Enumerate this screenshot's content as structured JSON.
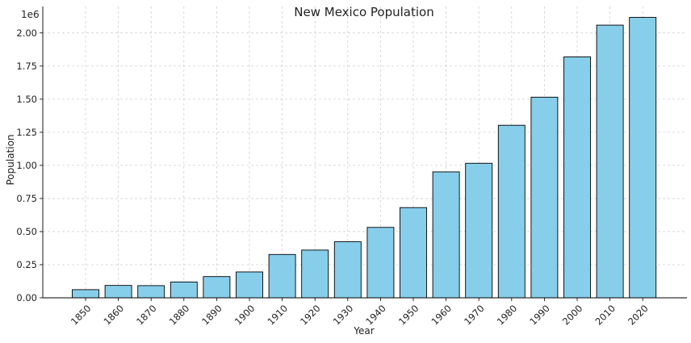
{
  "chart_data": {
    "type": "bar",
    "title": "New Mexico Population",
    "xlabel": "Year",
    "ylabel": "Population",
    "y_offset_label": "1e6",
    "categories": [
      "1850",
      "1860",
      "1870",
      "1880",
      "1890",
      "1900",
      "1910",
      "1920",
      "1930",
      "1940",
      "1950",
      "1960",
      "1970",
      "1980",
      "1990",
      "2000",
      "2010",
      "2020"
    ],
    "values": [
      61547,
      93516,
      91874,
      119565,
      160282,
      195310,
      327301,
      360350,
      423317,
      531818,
      681187,
      951023,
      1016000,
      1302894,
      1515069,
      1819046,
      2059179,
      2117522
    ],
    "ylim": [
      0,
      2200000
    ],
    "y_ticks": [
      0,
      250000,
      500000,
      750000,
      1000000,
      1250000,
      1500000,
      1750000,
      2000000
    ],
    "y_tick_labels": [
      "0.00",
      "0.25",
      "0.50",
      "0.75",
      "1.00",
      "1.25",
      "1.50",
      "1.75",
      "2.00"
    ],
    "grid": true,
    "bar_color": "#87CEEB",
    "edge_color": "#000000",
    "grid_color": "#d0d0d0"
  }
}
